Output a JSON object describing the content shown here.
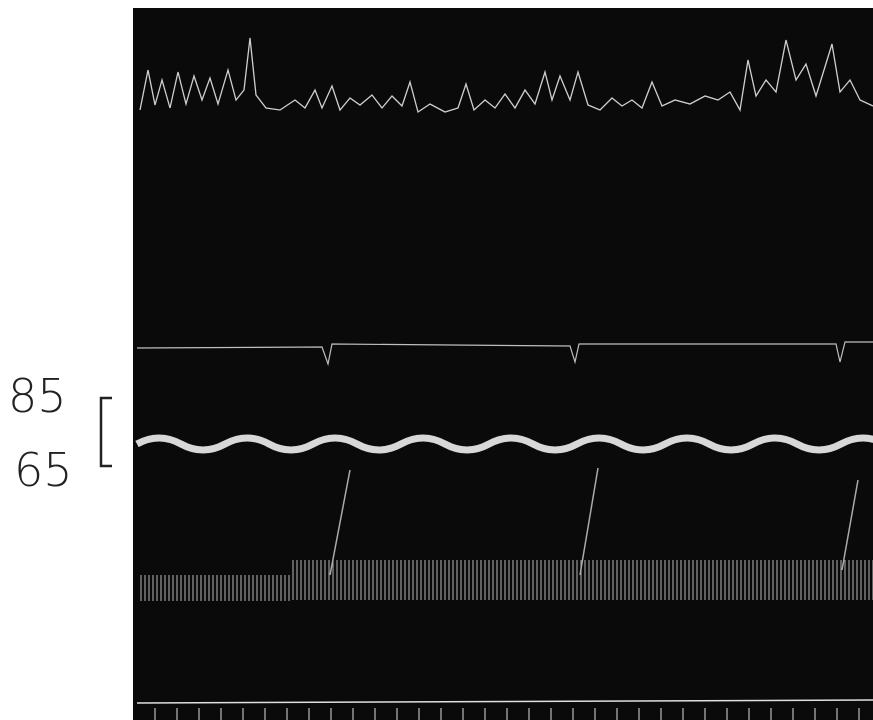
{
  "scale_labels": {
    "upper": "85",
    "lower": "65"
  }
}
